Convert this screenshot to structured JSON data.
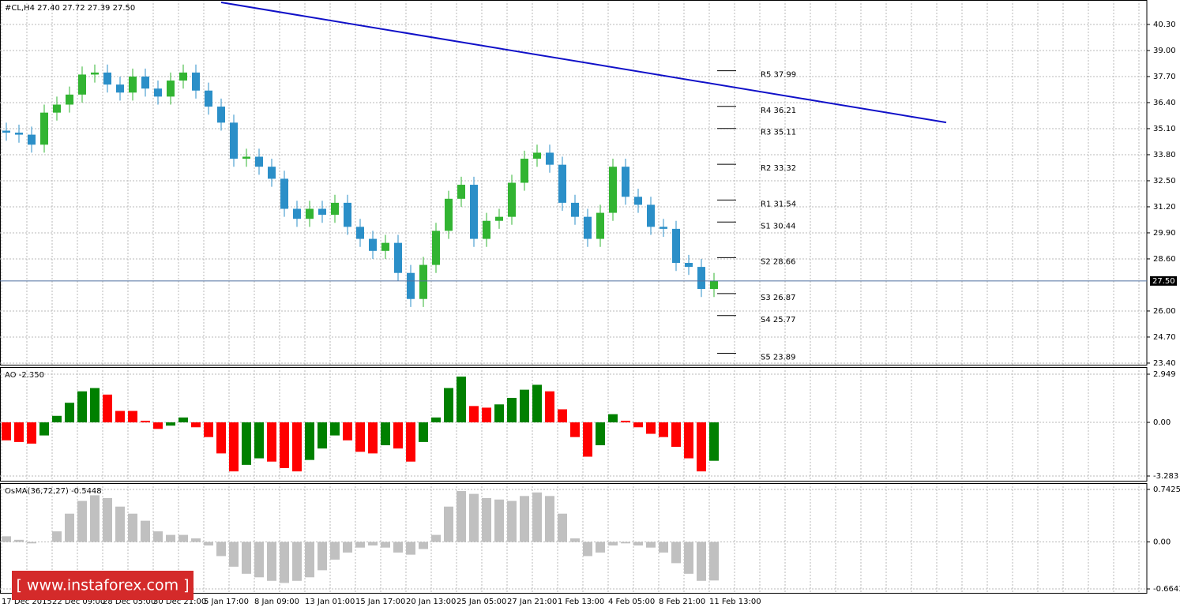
{
  "chart_data": [
    {
      "type": "candlestick",
      "title": "#CL,H4  27.40 27.72 27.39 27.50",
      "categories": [
        "17 Dec 2015",
        null,
        null,
        null,
        "22 Dec 09:00",
        null,
        null,
        null,
        "28 Dec 05:00",
        null,
        null,
        null,
        "30 Dec 21:00",
        null,
        null,
        null,
        "5 Jan 17:00",
        null,
        null,
        null,
        "8 Jan 09:00",
        null,
        null,
        null,
        "13 Jan 01:00",
        null,
        null,
        null,
        "15 Jan 17:00",
        null,
        null,
        null,
        "20 Jan 13:00",
        null,
        null,
        null,
        "25 Jan 05:00",
        null,
        null,
        null,
        "27 Jan 21:00",
        null,
        null,
        null,
        "1 Feb 13:00",
        null,
        null,
        null,
        "4 Feb 05:00",
        null,
        null,
        null,
        "8 Feb 21:00",
        null,
        null,
        null,
        "11 Feb 13:00"
      ],
      "open": [
        35.0,
        34.9,
        34.8,
        34.3,
        35.9,
        36.3,
        36.8,
        37.8,
        37.9,
        37.3,
        36.9,
        37.7,
        37.1,
        36.7,
        37.5,
        37.9,
        37.0,
        36.2,
        35.4,
        33.6,
        33.7,
        33.2,
        32.6,
        31.1,
        30.6,
        31.1,
        30.8,
        31.4,
        30.2,
        29.6,
        29.0,
        29.4,
        27.9,
        26.6,
        28.3,
        30.0,
        31.6,
        32.3,
        29.6,
        30.5,
        30.7,
        32.4,
        33.6,
        33.9,
        33.3,
        31.4,
        30.7,
        29.6,
        30.9,
        33.2,
        31.7,
        31.3,
        30.2,
        30.1,
        28.4,
        28.2,
        27.1
      ],
      "high": [
        35.4,
        35.3,
        35.2,
        36.3,
        36.7,
        37.2,
        38.2,
        38.3,
        38.3,
        37.7,
        38.1,
        38.1,
        37.5,
        37.9,
        38.3,
        38.3,
        37.4,
        36.6,
        35.8,
        34.1,
        34.1,
        33.6,
        33.0,
        31.5,
        31.5,
        31.5,
        31.8,
        31.8,
        30.6,
        30.0,
        29.8,
        29.8,
        28.3,
        28.7,
        30.4,
        32.0,
        32.7,
        32.7,
        30.9,
        31.1,
        32.8,
        34.0,
        34.3,
        34.3,
        33.7,
        31.8,
        31.1,
        31.3,
        33.6,
        33.6,
        32.1,
        31.7,
        30.6,
        30.5,
        28.8,
        28.6,
        27.9
      ],
      "low": [
        34.5,
        34.4,
        33.9,
        33.9,
        35.5,
        35.9,
        36.4,
        37.4,
        36.9,
        36.5,
        36.5,
        36.7,
        36.3,
        36.3,
        37.1,
        36.6,
        35.8,
        35.0,
        33.2,
        33.2,
        32.8,
        32.2,
        30.7,
        30.2,
        30.2,
        30.4,
        30.4,
        29.8,
        29.2,
        28.6,
        28.6,
        27.5,
        26.2,
        26.2,
        27.9,
        29.6,
        31.2,
        29.2,
        29.2,
        30.1,
        30.3,
        32.0,
        33.2,
        32.9,
        31.0,
        30.3,
        29.2,
        29.2,
        30.5,
        31.3,
        30.9,
        29.8,
        29.7,
        28.0,
        27.8,
        26.7,
        26.7
      ],
      "close": [
        34.9,
        34.8,
        34.3,
        35.9,
        36.3,
        36.8,
        37.8,
        37.9,
        37.3,
        36.9,
        37.7,
        37.1,
        36.7,
        37.5,
        37.9,
        37.0,
        36.2,
        35.4,
        33.6,
        33.7,
        33.2,
        32.6,
        31.1,
        30.6,
        31.1,
        30.8,
        31.4,
        30.2,
        29.6,
        29.0,
        29.4,
        27.9,
        26.6,
        28.3,
        30.0,
        31.6,
        32.3,
        29.6,
        30.5,
        30.7,
        32.4,
        33.6,
        33.9,
        33.3,
        31.4,
        30.7,
        29.6,
        30.9,
        33.2,
        31.7,
        31.3,
        30.2,
        30.1,
        28.4,
        28.2,
        27.1,
        27.5
      ],
      "up_color": "#32b432",
      "down_color": "#2b8fc8",
      "ylim": [
        23.28,
        41.52
      ],
      "yticks": [
        {
          "value": 40.3,
          "label": "40.30"
        },
        {
          "value": 39.0,
          "label": "39.00"
        },
        {
          "value": 37.7,
          "label": "37.70"
        },
        {
          "value": 36.4,
          "label": "36.40"
        },
        {
          "value": 35.1,
          "label": "35.10"
        },
        {
          "value": 33.8,
          "label": "33.80"
        },
        {
          "value": 32.5,
          "label": "32.50"
        },
        {
          "value": 31.2,
          "label": "31.20"
        },
        {
          "value": 29.9,
          "label": "29.90"
        },
        {
          "value": 28.6,
          "label": "28.60"
        },
        {
          "value": 26.0,
          "label": "26.00"
        },
        {
          "value": 24.7,
          "label": "24.70"
        },
        {
          "value": 23.4,
          "label": "23.40"
        }
      ],
      "grid": true,
      "last_price": {
        "value": 27.5,
        "label": "27.50"
      },
      "levels": [
        {
          "label": "R5 37.99",
          "value": 37.99
        },
        {
          "label": "R4 36.21",
          "value": 36.21
        },
        {
          "label": "R3 35.11",
          "value": 35.11
        },
        {
          "label": "R2 33.32",
          "value": 33.32
        },
        {
          "label": "R1 31.54",
          "value": 31.54
        },
        {
          "label": "S1 30.44",
          "value": 30.44
        },
        {
          "label": "S2 28.66",
          "value": 28.66
        },
        {
          "label": "S3 26.87",
          "value": 26.87
        },
        {
          "label": "S4 25.77",
          "value": 25.77
        },
        {
          "label": "S5 23.89",
          "value": 23.89
        }
      ],
      "trendline": {
        "color": "#1010c8",
        "values": [
          41.4,
          35.41
        ]
      }
    },
    {
      "type": "bar",
      "title": "AO -2.350",
      "values": [
        -1.1,
        -1.2,
        -1.3,
        -0.8,
        0.4,
        1.2,
        1.9,
        2.1,
        1.7,
        0.7,
        0.7,
        0.1,
        -0.4,
        -0.2,
        0.3,
        -0.3,
        -0.9,
        -1.9,
        -3.0,
        -2.6,
        -2.2,
        -2.4,
        -2.8,
        -3.0,
        -2.3,
        -1.6,
        -0.8,
        -1.1,
        -1.8,
        -1.9,
        -1.4,
        -1.6,
        -2.4,
        -1.2,
        0.3,
        2.1,
        2.8,
        1.0,
        0.9,
        1.1,
        1.5,
        2.0,
        2.3,
        1.9,
        0.8,
        -0.9,
        -2.1,
        -1.4,
        0.5,
        0.1,
        -0.3,
        -0.7,
        -0.9,
        -1.5,
        -2.2,
        -3.0,
        -2.35
      ],
      "up_color": "#008000",
      "down_color": "#ff0000",
      "ylim": [
        -3.621,
        3.384
      ],
      "yticks": [
        2.949,
        {
          "value": 0,
          "label": "0.00"
        },
        -3.283
      ],
      "grid": true
    },
    {
      "type": "bar",
      "title": "OsMA(36,72,27) -0.5448",
      "values": [
        0.08,
        0.03,
        -0.02,
        0.0,
        0.15,
        0.4,
        0.58,
        0.66,
        0.62,
        0.5,
        0.4,
        0.3,
        0.15,
        0.1,
        0.1,
        0.05,
        -0.05,
        -0.2,
        -0.35,
        -0.45,
        -0.5,
        -0.55,
        -0.58,
        -0.55,
        -0.5,
        -0.4,
        -0.25,
        -0.15,
        -0.08,
        -0.05,
        -0.08,
        -0.15,
        -0.18,
        -0.1,
        0.1,
        0.5,
        0.72,
        0.68,
        0.62,
        0.6,
        0.58,
        0.65,
        0.7,
        0.65,
        0.4,
        0.05,
        -0.2,
        -0.15,
        -0.05,
        -0.02,
        -0.05,
        -0.08,
        -0.15,
        -0.3,
        -0.45,
        -0.55,
        -0.5448
      ],
      "color": "#c0c0c0",
      "ylim": [
        -0.731,
        0.832
      ],
      "yticks": [
        0.7425,
        {
          "value": 0,
          "label": "0.00"
        },
        -0.6643
      ],
      "grid": true
    }
  ],
  "watermark": "[ www.instaforex.com ]"
}
